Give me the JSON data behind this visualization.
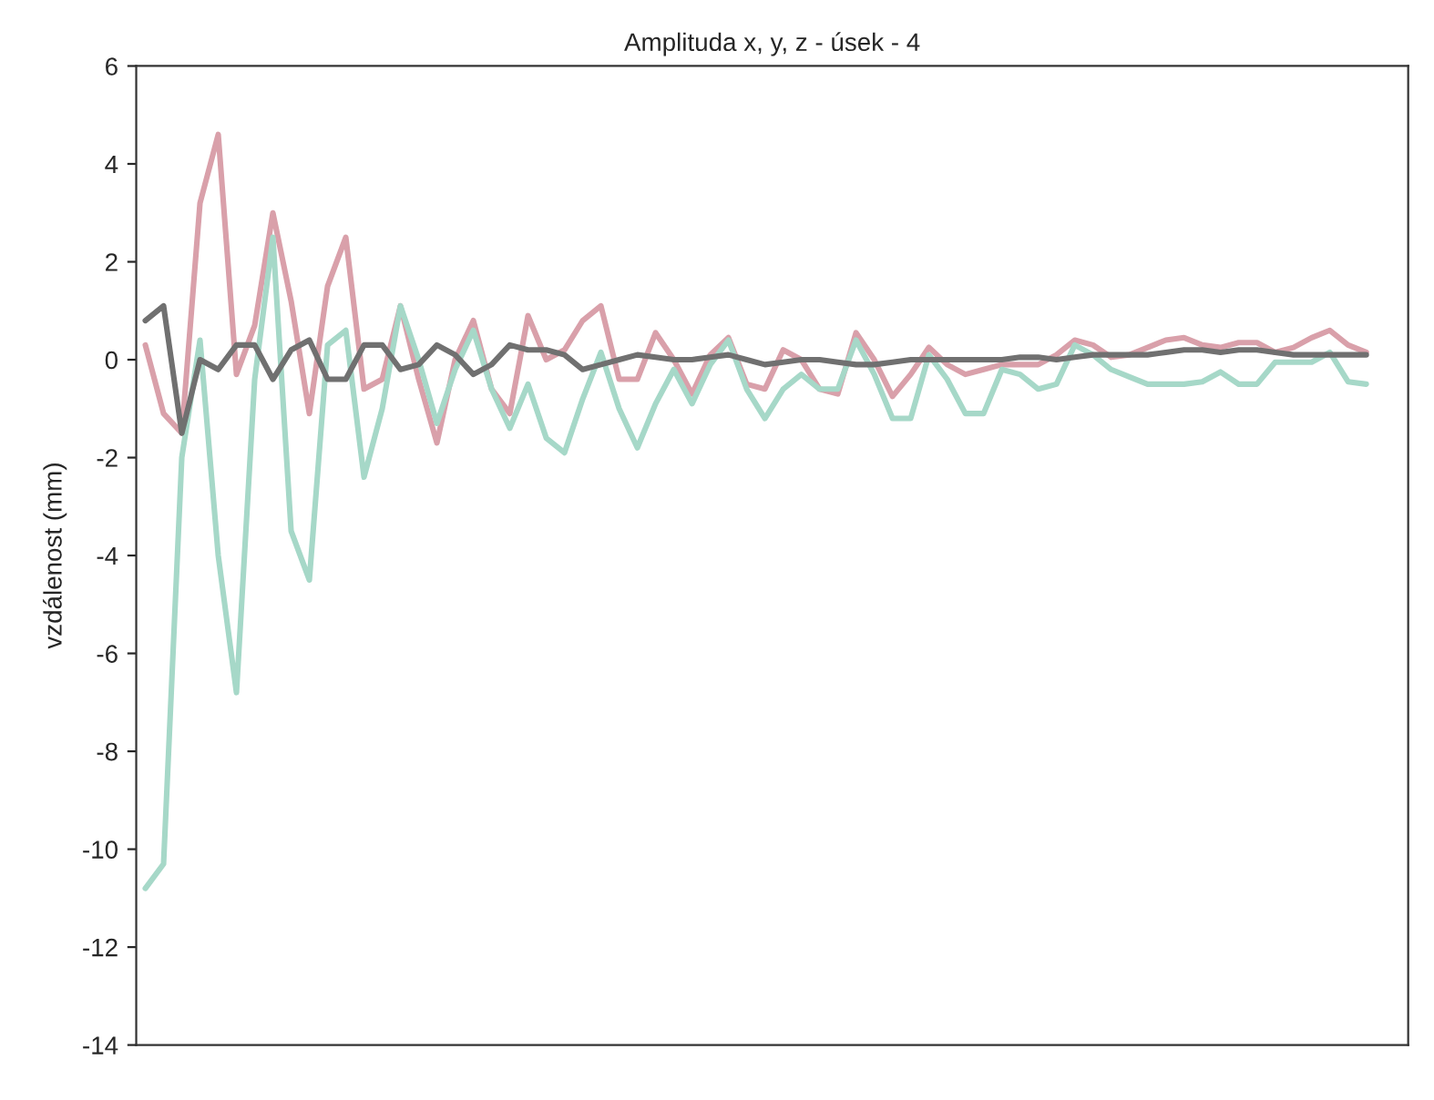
{
  "chart_data": {
    "type": "line",
    "title": "Amplituda x, y, z - úsek - 4",
    "ylabel": "vzdálenost (mm)",
    "categories": [
      null,
      null,
      null,
      null,
      null,
      null,
      null,
      null,
      null,
      null,
      null,
      null,
      null,
      null,
      null,
      null,
      null,
      null,
      null,
      null,
      null,
      null,
      null,
      null,
      null,
      null,
      null,
      null,
      null,
      null,
      null,
      null,
      null,
      null,
      null,
      null,
      null,
      null,
      null,
      null,
      null,
      null,
      null,
      null,
      null,
      null,
      null,
      null,
      null,
      null,
      null,
      null,
      null,
      null,
      null,
      null,
      null,
      null,
      null,
      null,
      null,
      null,
      null,
      null,
      null,
      null,
      null,
      null
    ],
    "series": [
      {
        "color": "#d9a0aa",
        "values": [
          0.3,
          -1.1,
          -1.5,
          3.2,
          4.6,
          -0.3,
          0.7,
          3.0,
          1.2,
          -1.1,
          1.5,
          2.5,
          -0.6,
          -0.4,
          1.1,
          -0.4,
          -1.7,
          0.0,
          0.8,
          -0.6,
          -1.1,
          0.9,
          0.0,
          0.2,
          0.8,
          1.1,
          -0.4,
          -0.4,
          0.55,
          0.0,
          -0.7,
          0.1,
          0.45,
          -0.5,
          -0.6,
          0.2,
          0.0,
          -0.6,
          -0.7,
          0.55,
          0.0,
          -0.75,
          -0.3,
          0.25,
          -0.1,
          -0.3,
          -0.2,
          -0.1,
          -0.1,
          -0.1,
          0.1,
          0.4,
          0.3,
          0.05,
          0.1,
          0.25,
          0.4,
          0.45,
          0.3,
          0.25,
          0.35,
          0.35,
          0.15,
          0.25,
          0.45,
          0.6,
          0.3,
          0.15
        ]
      },
      {
        "color": "#a6d8c8",
        "values": [
          -10.8,
          -10.3,
          -2.0,
          0.4,
          -4.0,
          -6.8,
          -0.4,
          2.5,
          -3.5,
          -4.5,
          0.3,
          0.6,
          -2.4,
          -1.0,
          1.1,
          0.0,
          -1.3,
          -0.2,
          0.6,
          -0.6,
          -1.4,
          -0.5,
          -1.6,
          -1.9,
          -0.8,
          0.15,
          -1.0,
          -1.8,
          -0.9,
          -0.2,
          -0.9,
          -0.1,
          0.4,
          -0.6,
          -1.2,
          -0.6,
          -0.3,
          -0.6,
          -0.6,
          0.4,
          -0.3,
          -1.2,
          -1.2,
          0.1,
          -0.4,
          -1.1,
          -1.1,
          -0.2,
          -0.3,
          -0.6,
          -0.5,
          0.3,
          0.1,
          -0.2,
          -0.35,
          -0.5,
          -0.5,
          -0.5,
          -0.45,
          -0.25,
          -0.5,
          -0.5,
          -0.05,
          -0.05,
          -0.05,
          0.15,
          -0.45,
          -0.5
        ]
      },
      {
        "color": "#707070",
        "values": [
          0.8,
          1.1,
          -1.5,
          0.0,
          -0.2,
          0.3,
          0.3,
          -0.4,
          0.2,
          0.4,
          -0.4,
          -0.4,
          0.3,
          0.3,
          -0.2,
          -0.1,
          0.3,
          0.1,
          -0.3,
          -0.1,
          0.3,
          0.2,
          0.2,
          0.1,
          -0.2,
          -0.1,
          0.0,
          0.1,
          0.05,
          0.0,
          0.0,
          0.05,
          0.1,
          0.0,
          -0.1,
          -0.05,
          0.0,
          0.0,
          -0.05,
          -0.1,
          -0.1,
          -0.05,
          0.0,
          0.0,
          0.0,
          0.0,
          0.0,
          0.0,
          0.05,
          0.05,
          0.0,
          0.05,
          0.1,
          0.1,
          0.1,
          0.1,
          0.15,
          0.2,
          0.2,
          0.15,
          0.2,
          0.2,
          0.15,
          0.1,
          0.1,
          0.1,
          0.1,
          0.1
        ]
      }
    ],
    "ylim": [
      -14,
      6
    ],
    "yticks": [
      -14,
      -12,
      -10,
      -8,
      -6,
      -4,
      -2,
      0,
      2,
      4,
      6
    ],
    "grid": false,
    "tick_labels": "y"
  }
}
